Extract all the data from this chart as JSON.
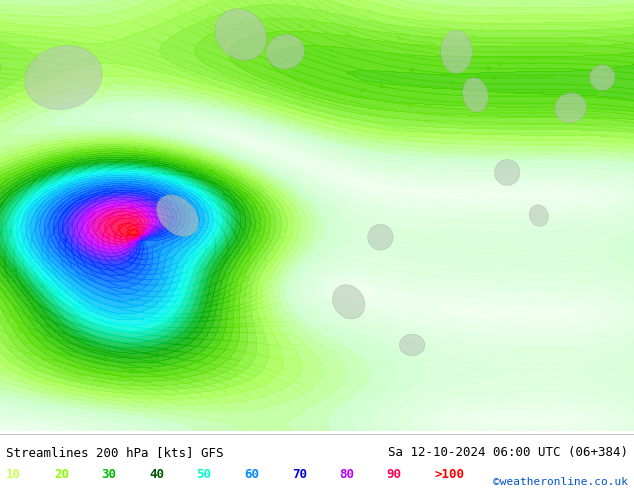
{
  "title_left": "Streamlines 200 hPa [kts] GFS",
  "title_right": "Sa 12-10-2024 06:00 UTC (06+384)",
  "credit": "©weatheronline.co.uk",
  "legend_values": [
    "10",
    "20",
    "30",
    "40",
    "50",
    "60",
    "70",
    "80",
    "90",
    ">100"
  ],
  "legend_colors": [
    "#aaffaa",
    "#55ff00",
    "#00cc00",
    "#007700",
    "#00ffff",
    "#0099ff",
    "#0000ff",
    "#ff00ff",
    "#ff0088",
    "#ff0000"
  ],
  "bg_color": "#ffffff",
  "map_bg": "#e8f5e8",
  "land_color": "#d0e8d0",
  "sea_color": "#ffffff",
  "fig_width": 6.34,
  "fig_height": 4.9,
  "dpi": 100,
  "streamline_colors": {
    "10": "#ccff99",
    "20": "#aaff00",
    "30": "#00dd00",
    "40": "#008800",
    "50": "#00ffee",
    "60": "#0099ff",
    "70": "#0033ff",
    "80": "#cc00ff",
    "90": "#ff0077",
    "100": "#ff0000"
  },
  "bottom_bar_color": "#ffffff",
  "text_color": "#000000",
  "legend_label_colors": [
    "#ccff55",
    "#88ff00",
    "#00bb00",
    "#005500",
    "#00ffcc",
    "#0088ff",
    "#0000dd",
    "#bb00ff",
    "#ff0055",
    "#ff0000"
  ]
}
